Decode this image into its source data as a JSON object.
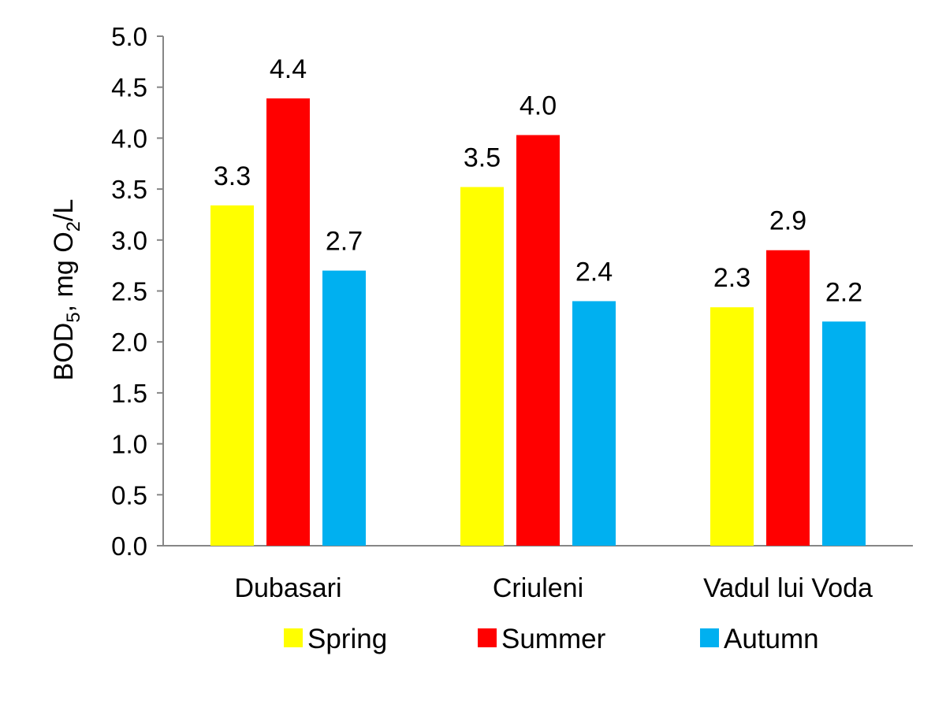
{
  "chart_data": {
    "type": "bar",
    "categories": [
      "Dubasari",
      "Criuleni",
      "Vadul lui Voda"
    ],
    "series": [
      {
        "name": "Spring",
        "color": "#FFFF00",
        "values": [
          3.34,
          3.52,
          2.34
        ],
        "labels": [
          "3.3",
          "3.5",
          "2.3"
        ]
      },
      {
        "name": "Summer",
        "color": "#FF0000",
        "values": [
          4.39,
          4.03,
          2.9
        ],
        "labels": [
          "4.4",
          "4.0",
          "2.9"
        ]
      },
      {
        "name": "Autumn",
        "color": "#00B0F0",
        "values": [
          2.7,
          2.4,
          2.2
        ],
        "labels": [
          "2.7",
          "2.4",
          "2.2"
        ]
      }
    ],
    "ylabel": {
      "prefix": "BOD",
      "sub1": "5",
      "mid": ", mg O",
      "sub2": "2",
      "suffix": "/L"
    },
    "ylim": [
      0,
      5
    ],
    "yticks": [
      "0.0",
      "0.5",
      "1.0",
      "1.5",
      "2.0",
      "2.5",
      "3.0",
      "3.5",
      "4.0",
      "4.5",
      "5.0"
    ],
    "grid": false,
    "legend_position": "bottom"
  }
}
